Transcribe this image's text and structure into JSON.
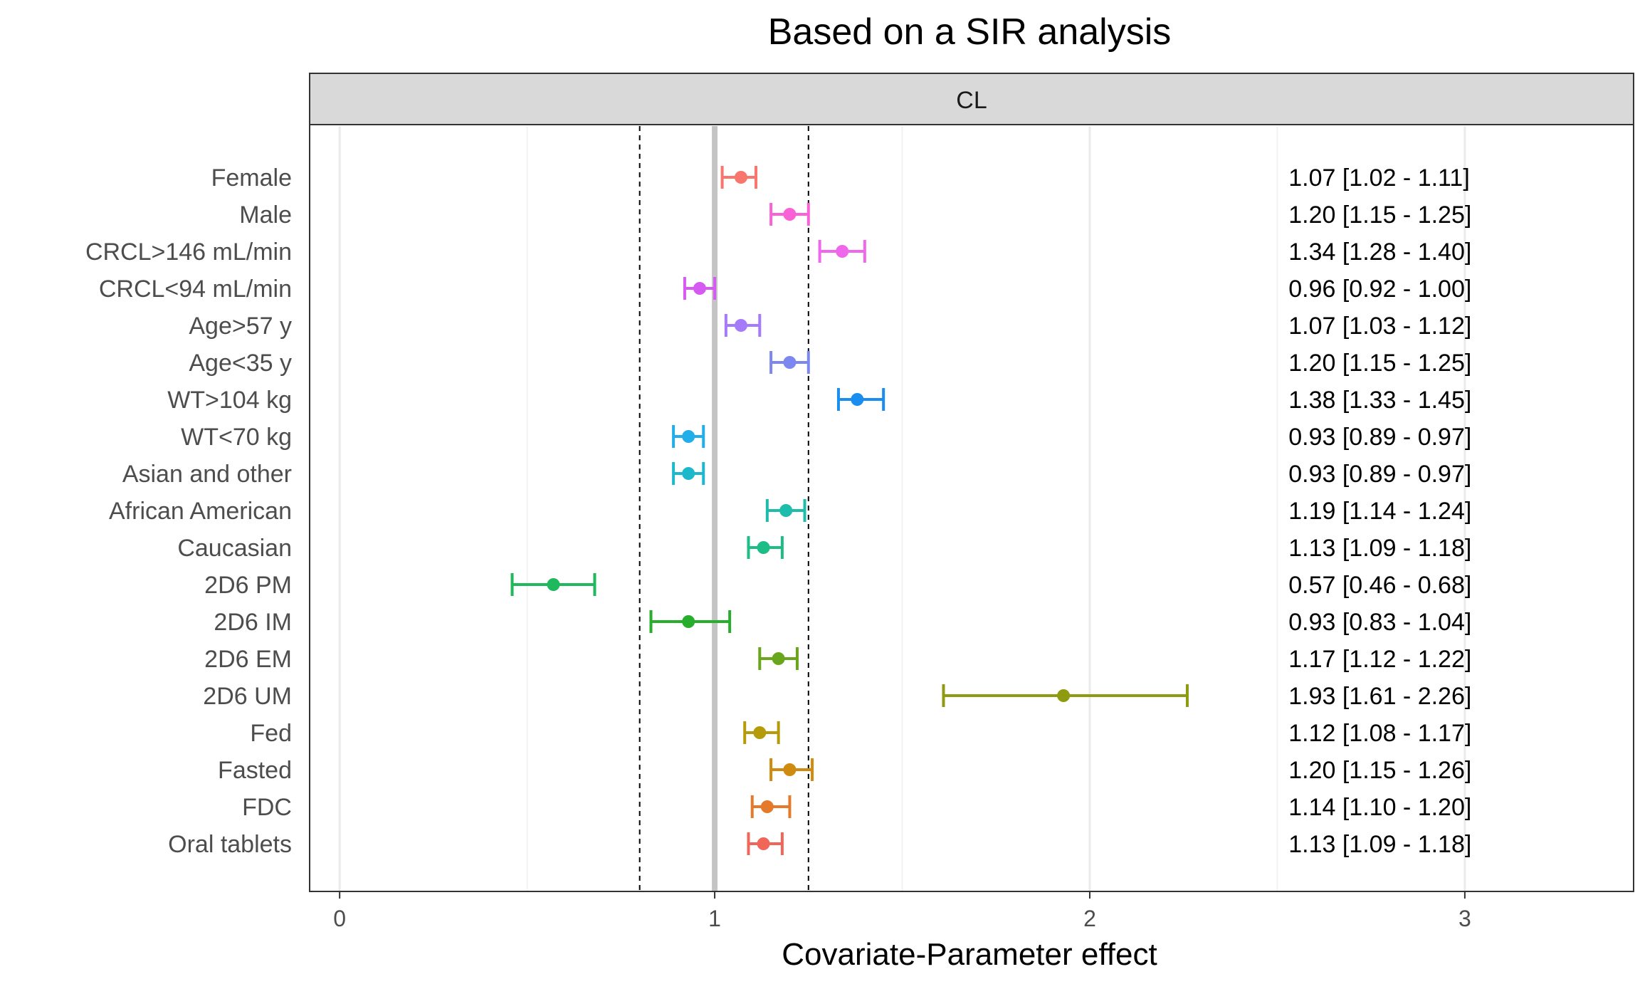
{
  "chart_data": {
    "type": "forest",
    "title": "Based on a SIR analysis",
    "panel": "CL",
    "xlabel": "Covariate-Parameter effect",
    "ylabel": "",
    "xlim": [
      -0.08,
      3.45
    ],
    "xticks": [
      0,
      1,
      2,
      3
    ],
    "reference_line": 1,
    "reference_band": [
      0.8,
      1.25
    ],
    "grid": true,
    "rows": [
      {
        "label": "Female",
        "value": 1.07,
        "lower": 1.02,
        "upper": 1.11,
        "text": "1.07 [1.02 - 1.11]",
        "color": "#F8766D"
      },
      {
        "label": "Male",
        "value": 1.2,
        "lower": 1.15,
        "upper": 1.25,
        "text": "1.20 [1.15 - 1.25]",
        "color": "#FB61D7"
      },
      {
        "label": "CRCL>146 mL/min",
        "value": 1.34,
        "lower": 1.28,
        "upper": 1.4,
        "text": "1.34 [1.28 - 1.40]",
        "color": "#EF67EB"
      },
      {
        "label": "CRCL<94 mL/min",
        "value": 0.96,
        "lower": 0.92,
        "upper": 1.0,
        "text": "0.96 [0.92 - 1.00]",
        "color": "#D65AF2"
      },
      {
        "label": "Age>57 y",
        "value": 1.07,
        "lower": 1.03,
        "upper": 1.12,
        "text": "1.07 [1.03 - 1.12]",
        "color": "#A57BFA"
      },
      {
        "label": "Age<35 y",
        "value": 1.2,
        "lower": 1.15,
        "upper": 1.25,
        "text": "1.20 [1.15 - 1.25]",
        "color": "#7C87F0"
      },
      {
        "label": "WT>104 kg",
        "value": 1.38,
        "lower": 1.33,
        "upper": 1.45,
        "text": "1.38 [1.33 - 1.45]",
        "color": "#1A8EF0"
      },
      {
        "label": "WT<70 kg",
        "value": 0.93,
        "lower": 0.89,
        "upper": 0.97,
        "text": "0.93 [0.89 - 0.97]",
        "color": "#22AEE8"
      },
      {
        "label": "Asian and other",
        "value": 0.93,
        "lower": 0.89,
        "upper": 0.97,
        "text": "0.93 [0.89 - 0.97]",
        "color": "#1DB8CC"
      },
      {
        "label": "African American",
        "value": 1.19,
        "lower": 1.14,
        "upper": 1.24,
        "text": "1.19 [1.14 - 1.24]",
        "color": "#1EBCAA"
      },
      {
        "label": "Caucasian",
        "value": 1.13,
        "lower": 1.09,
        "upper": 1.18,
        "text": "1.13 [1.09 - 1.18]",
        "color": "#1EBD85"
      },
      {
        "label": "2D6 PM",
        "value": 0.57,
        "lower": 0.46,
        "upper": 0.68,
        "text": "0.57 [0.46 - 0.68]",
        "color": "#1FB85C"
      },
      {
        "label": "2D6 IM",
        "value": 0.93,
        "lower": 0.83,
        "upper": 1.04,
        "text": "0.93 [0.83 - 1.04]",
        "color": "#28AE2C"
      },
      {
        "label": "2D6 EM",
        "value": 1.17,
        "lower": 1.12,
        "upper": 1.22,
        "text": "1.17 [1.12 - 1.22]",
        "color": "#6AA61B"
      },
      {
        "label": "2D6 UM",
        "value": 1.93,
        "lower": 1.61,
        "upper": 2.26,
        "text": "1.93 [1.61 - 2.26]",
        "color": "#8E9B10"
      },
      {
        "label": "Fed",
        "value": 1.12,
        "lower": 1.08,
        "upper": 1.17,
        "text": "1.12 [1.08 - 1.17]",
        "color": "#B59B0A"
      },
      {
        "label": "Fasted",
        "value": 1.2,
        "lower": 1.15,
        "upper": 1.26,
        "text": "1.20 [1.15 - 1.26]",
        "color": "#CF8A10"
      },
      {
        "label": "FDC",
        "value": 1.14,
        "lower": 1.1,
        "upper": 1.2,
        "text": "1.14 [1.10 - 1.20]",
        "color": "#E57A2A"
      },
      {
        "label": "Oral tablets",
        "value": 1.13,
        "lower": 1.09,
        "upper": 1.18,
        "text": "1.13 [1.09 - 1.18]",
        "color": "#F0675A"
      }
    ]
  }
}
